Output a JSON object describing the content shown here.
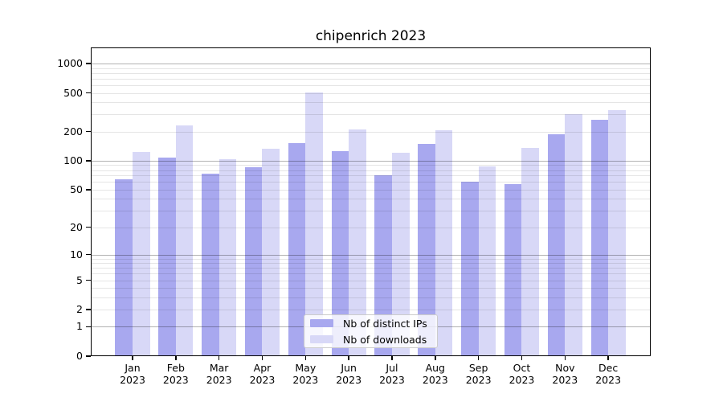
{
  "chart_data": {
    "type": "bar",
    "title": "chipenrich 2023",
    "categories": [
      {
        "month": "Jan",
        "year": "2023"
      },
      {
        "month": "Feb",
        "year": "2023"
      },
      {
        "month": "Mar",
        "year": "2023"
      },
      {
        "month": "Apr",
        "year": "2023"
      },
      {
        "month": "May",
        "year": "2023"
      },
      {
        "month": "Jun",
        "year": "2023"
      },
      {
        "month": "Jul",
        "year": "2023"
      },
      {
        "month": "Aug",
        "year": "2023"
      },
      {
        "month": "Sep",
        "year": "2023"
      },
      {
        "month": "Oct",
        "year": "2023"
      },
      {
        "month": "Nov",
        "year": "2023"
      },
      {
        "month": "Dec",
        "year": "2023"
      }
    ],
    "series": [
      {
        "name": "Nb of distinct IPs",
        "color": "#a8a8ef",
        "values": [
          64,
          108,
          73,
          85,
          152,
          125,
          70,
          148,
          60,
          57,
          186,
          266
        ]
      },
      {
        "name": "Nb of downloads",
        "color": "#d8d8f7",
        "values": [
          124,
          233,
          103,
          134,
          508,
          210,
          120,
          205,
          87,
          136,
          300,
          332
        ]
      }
    ],
    "y_ticks": [
      0,
      1,
      2,
      5,
      10,
      20,
      50,
      100,
      200,
      500,
      1000
    ],
    "y_scale": "log10(value+1)",
    "y_axis_top": 1464,
    "grid": true,
    "legend_position": "lower center",
    "colors": {
      "major_gridline": "#adadad",
      "minor_gridline": "#e6e6e6",
      "axis": "#000000",
      "background": "#ffffff"
    }
  }
}
